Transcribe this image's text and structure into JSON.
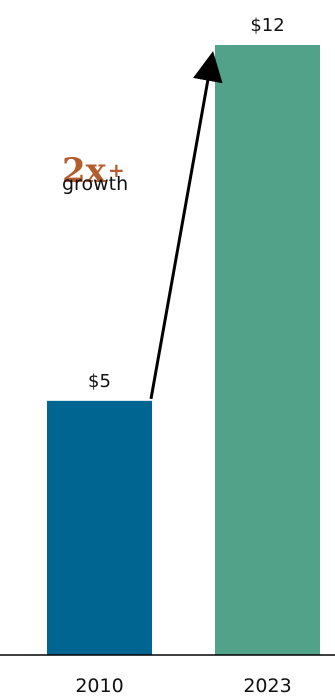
{
  "chart_data": {
    "type": "bar",
    "categories": [
      "2010",
      "2023"
    ],
    "values": [
      5,
      12
    ],
    "value_labels": [
      "$5",
      "$12"
    ],
    "colors": [
      "#006591",
      "#52a28a"
    ],
    "ylim": [
      0,
      12
    ],
    "grid": false,
    "annotation": {
      "main": "2x",
      "suffix": "+",
      "sub": "growth"
    }
  }
}
